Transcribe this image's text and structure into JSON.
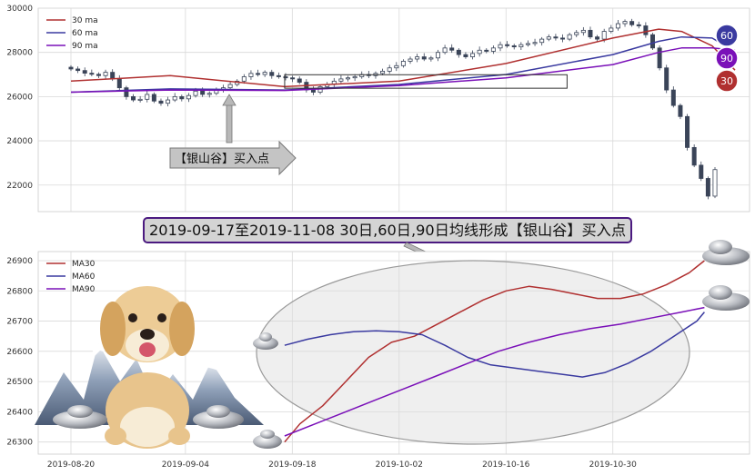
{
  "colors": {
    "ma30": "#b03030",
    "ma60": "#3a3aa0",
    "ma90": "#7a10b8",
    "candle": "#3a4458",
    "grid": "#d9d9d9",
    "highlight_box": "#333333"
  },
  "top_chart": {
    "callout_label": "【银山谷】买入点",
    "badges": [
      "60",
      "90",
      "30"
    ]
  },
  "banner": {
    "text": "2019-09-17至2019-11-08 30日,60日,90日均线形成【银山谷】买入点"
  },
  "chart_data": [
    {
      "type": "line",
      "panel": "price-candlestick",
      "ylim": [
        20800,
        30000
      ],
      "y_ticks": [
        22000,
        24000,
        26000,
        28000,
        30000
      ],
      "x_range": [
        "2019-08-20",
        "2019-11-15"
      ],
      "legend_placement": "top-left",
      "grid": true,
      "highlight": {
        "x0": "2019-09-17",
        "x1": "2019-10-24",
        "y0": 26380,
        "y1": 26990
      },
      "candles": {
        "note": "",
        "close": [
          27250,
          27180,
          27060,
          27010,
          26950,
          27100,
          26800,
          26400,
          26000,
          25850,
          25880,
          26100,
          25800,
          25700,
          25850,
          26000,
          25900,
          26050,
          26250,
          26100,
          26150,
          26300,
          26400,
          26550,
          26700,
          26900,
          27050,
          27000,
          27100,
          26950,
          26900,
          26850,
          26800,
          26650,
          26300,
          26200,
          26450,
          26550,
          26700,
          26800,
          26850,
          26900,
          27000,
          26950,
          27050,
          27150,
          27300,
          27400,
          27600,
          27700,
          27800,
          27700,
          27750,
          28000,
          28200,
          28100,
          27900,
          27800,
          27950,
          28100,
          28050,
          28200,
          28350,
          28300,
          28250,
          28350,
          28400,
          28450,
          28600,
          28700,
          28650,
          28600,
          28800,
          28900,
          29000,
          28700,
          28600,
          28950,
          29100,
          29300,
          29400,
          29250,
          29200,
          28800,
          28200,
          27300,
          26300,
          25600,
          25100,
          23700,
          22900,
          22300,
          21500,
          22700
        ]
      },
      "series": [
        {
          "name": "30 ma",
          "x": [
            "2019-08-20",
            "2019-09-02",
            "2019-09-17",
            "2019-10-02",
            "2019-10-16",
            "2019-10-30",
            "2019-11-05",
            "2019-11-08",
            "2019-11-12",
            "2019-11-15"
          ],
          "values": [
            26700,
            26950,
            26450,
            26700,
            27500,
            28650,
            29050,
            28950,
            28300,
            27200
          ]
        },
        {
          "name": "60 ma",
          "x": [
            "2019-08-20",
            "2019-09-02",
            "2019-09-17",
            "2019-10-02",
            "2019-10-16",
            "2019-10-30",
            "2019-11-05",
            "2019-11-08",
            "2019-11-12",
            "2019-11-15"
          ],
          "values": [
            26200,
            26350,
            26300,
            26550,
            27000,
            27900,
            28500,
            28700,
            28650,
            28050
          ]
        },
        {
          "name": "90 ma",
          "x": [
            "2019-08-20",
            "2019-09-02",
            "2019-09-17",
            "2019-10-02",
            "2019-10-16",
            "2019-10-30",
            "2019-11-05",
            "2019-11-08",
            "2019-11-12",
            "2019-11-15"
          ],
          "values": [
            26200,
            26300,
            26280,
            26500,
            26850,
            27450,
            28000,
            28200,
            28200,
            28100
          ]
        }
      ]
    },
    {
      "type": "line",
      "panel": "moving-averages-zoom",
      "ylim": [
        26260,
        26930
      ],
      "y_ticks": [
        26300,
        26400,
        26500,
        26600,
        26700,
        26800,
        26900
      ],
      "x_ticks": [
        "2019-08-20",
        "2019-09-04",
        "2019-09-18",
        "2019-10-02",
        "2019-10-16",
        "2019-10-30"
      ],
      "x_range": [
        "2019-08-20",
        "2019-11-15"
      ],
      "legend_placement": "top-left",
      "grid": true,
      "series": [
        {
          "name": "MA30",
          "x": [
            "2019-09-17",
            "2019-09-19",
            "2019-09-22",
            "2019-09-25",
            "2019-09-28",
            "2019-10-01",
            "2019-10-04",
            "2019-10-07",
            "2019-10-10",
            "2019-10-13",
            "2019-10-16",
            "2019-10-19",
            "2019-10-22",
            "2019-10-25",
            "2019-10-28",
            "2019-10-31",
            "2019-11-03",
            "2019-11-06",
            "2019-11-09",
            "2019-11-11"
          ],
          "values": [
            26300,
            26360,
            26420,
            26500,
            26580,
            26630,
            26650,
            26690,
            26730,
            26770,
            26800,
            26815,
            26805,
            26790,
            26775,
            26775,
            26790,
            26820,
            26860,
            26900
          ]
        },
        {
          "name": "MA60",
          "x": [
            "2019-09-17",
            "2019-09-20",
            "2019-09-23",
            "2019-09-26",
            "2019-09-29",
            "2019-10-02",
            "2019-10-05",
            "2019-10-08",
            "2019-10-11",
            "2019-10-14",
            "2019-10-17",
            "2019-10-20",
            "2019-10-23",
            "2019-10-26",
            "2019-10-29",
            "2019-11-01",
            "2019-11-04",
            "2019-11-07",
            "2019-11-10",
            "2019-11-11"
          ],
          "values": [
            26620,
            26640,
            26655,
            26665,
            26668,
            26665,
            26655,
            26620,
            26580,
            26555,
            26545,
            26535,
            26525,
            26515,
            26530,
            26560,
            26600,
            26650,
            26700,
            26730
          ]
        },
        {
          "name": "MA90",
          "x": [
            "2019-09-17",
            "2019-09-21",
            "2019-09-25",
            "2019-09-29",
            "2019-10-03",
            "2019-10-07",
            "2019-10-11",
            "2019-10-15",
            "2019-10-19",
            "2019-10-23",
            "2019-10-27",
            "2019-10-31",
            "2019-11-04",
            "2019-11-08",
            "2019-11-11"
          ],
          "values": [
            26320,
            26360,
            26400,
            26440,
            26480,
            26520,
            26560,
            26600,
            26630,
            26655,
            26675,
            26690,
            26710,
            26730,
            26745
          ]
        }
      ]
    }
  ]
}
